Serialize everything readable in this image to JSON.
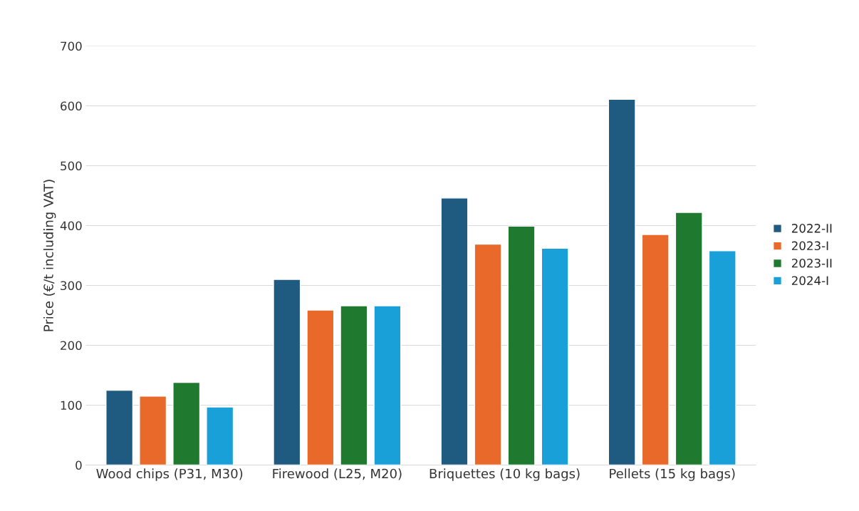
{
  "chart_data": {
    "type": "bar",
    "ylabel": "Price (€/t including VAT)",
    "categories": [
      "Wood chips (P31, M30)",
      "Firewood (L25, M20)",
      "Briquettes (10 kg bags)",
      "Pellets (15 kg bags)"
    ],
    "series": [
      {
        "name": "2022-II",
        "color": "#1f5a80",
        "values": [
          125,
          310,
          446,
          611
        ]
      },
      {
        "name": "2023-I",
        "color": "#e8692a",
        "values": [
          115,
          259,
          369,
          385
        ]
      },
      {
        "name": "2023-II",
        "color": "#1f7a30",
        "values": [
          138,
          266,
          399,
          422
        ]
      },
      {
        "name": "2024-I",
        "color": "#1aa0d8",
        "values": [
          97,
          266,
          362,
          358
        ]
      }
    ],
    "ylim": [
      0,
      700
    ],
    "yticks": [
      0,
      100,
      200,
      300,
      400,
      500,
      600,
      700
    ],
    "grid": "y",
    "legend": "right"
  }
}
